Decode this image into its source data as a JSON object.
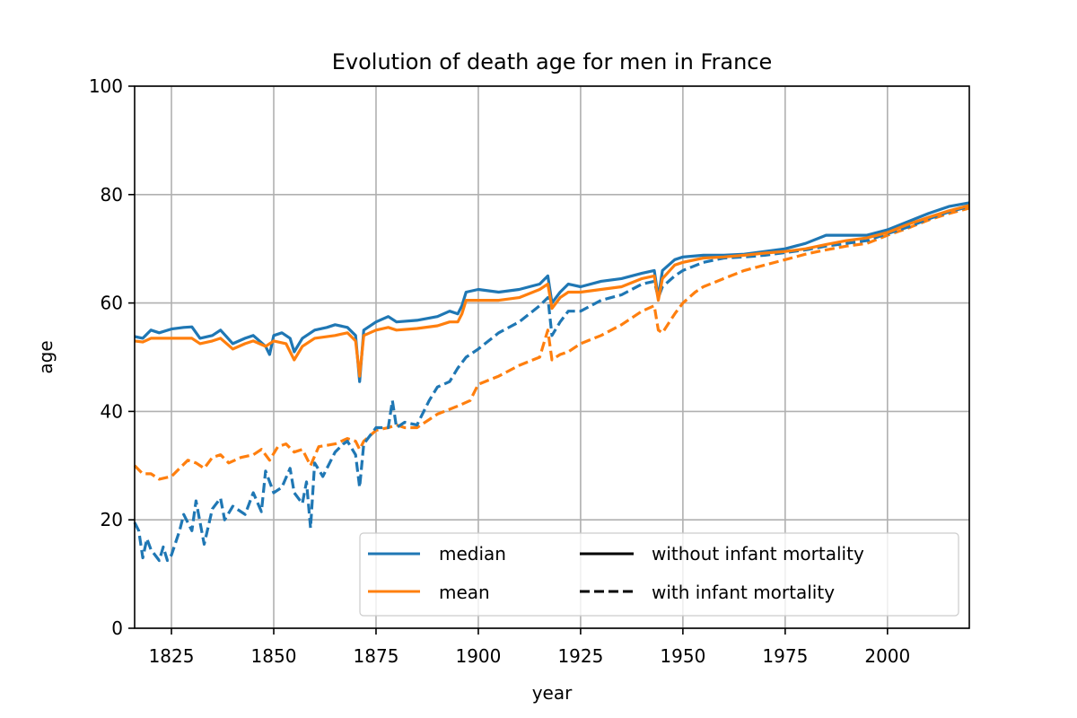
{
  "chart_data": {
    "type": "line",
    "title": "Evolution of death age for men in France",
    "xlabel": "year",
    "ylabel": "age",
    "xlim": [
      1816,
      2020
    ],
    "ylim": [
      0,
      100
    ],
    "xticks": [
      1825,
      1850,
      1875,
      1900,
      1925,
      1950,
      1975,
      2000
    ],
    "yticks": [
      0,
      20,
      40,
      60,
      80,
      100
    ],
    "grid": true,
    "legend_position": "lower-right",
    "legend": {
      "color_entries": [
        {
          "label": "median",
          "color": "#1f77b4"
        },
        {
          "label": "mean",
          "color": "#ff7f0e"
        }
      ],
      "style_entries": [
        {
          "label": "without infant mortality",
          "dash": "solid"
        },
        {
          "label": "with infant mortality",
          "dash": "dashed"
        }
      ]
    },
    "series": [
      {
        "name": "median",
        "variant": "without infant mortality",
        "color": "#1f77b4",
        "dash": "solid",
        "points": [
          [
            1816,
            53.8
          ],
          [
            1818,
            53.5
          ],
          [
            1820,
            55.0
          ],
          [
            1822,
            54.5
          ],
          [
            1825,
            55.2
          ],
          [
            1828,
            55.5
          ],
          [
            1830,
            55.6
          ],
          [
            1832,
            53.5
          ],
          [
            1835,
            54.0
          ],
          [
            1837,
            55.0
          ],
          [
            1840,
            52.5
          ],
          [
            1843,
            53.5
          ],
          [
            1845,
            54.0
          ],
          [
            1848,
            52.0
          ],
          [
            1849,
            50.5
          ],
          [
            1850,
            54.0
          ],
          [
            1852,
            54.5
          ],
          [
            1854,
            53.5
          ],
          [
            1855,
            51.0
          ],
          [
            1857,
            53.5
          ],
          [
            1860,
            55.0
          ],
          [
            1863,
            55.5
          ],
          [
            1865,
            56.0
          ],
          [
            1868,
            55.5
          ],
          [
            1870,
            54.0
          ],
          [
            1871,
            45.5
          ],
          [
            1872,
            55.0
          ],
          [
            1875,
            56.5
          ],
          [
            1878,
            57.5
          ],
          [
            1880,
            56.5
          ],
          [
            1885,
            56.8
          ],
          [
            1890,
            57.5
          ],
          [
            1893,
            58.5
          ],
          [
            1895,
            58.0
          ],
          [
            1896,
            59.5
          ],
          [
            1897,
            62.0
          ],
          [
            1900,
            62.5
          ],
          [
            1905,
            62.0
          ],
          [
            1910,
            62.5
          ],
          [
            1915,
            63.5
          ],
          [
            1917,
            65.0
          ],
          [
            1918,
            60.0
          ],
          [
            1920,
            62.0
          ],
          [
            1922,
            63.5
          ],
          [
            1925,
            63.0
          ],
          [
            1930,
            64.0
          ],
          [
            1935,
            64.5
          ],
          [
            1940,
            65.5
          ],
          [
            1943,
            66.0
          ],
          [
            1944,
            61.0
          ],
          [
            1945,
            66.0
          ],
          [
            1948,
            68.0
          ],
          [
            1950,
            68.5
          ],
          [
            1955,
            68.8
          ],
          [
            1960,
            68.8
          ],
          [
            1965,
            69.0
          ],
          [
            1970,
            69.5
          ],
          [
            1975,
            70.0
          ],
          [
            1980,
            71.0
          ],
          [
            1985,
            72.5
          ],
          [
            1990,
            72.5
          ],
          [
            1995,
            72.5
          ],
          [
            2000,
            73.5
          ],
          [
            2005,
            75.0
          ],
          [
            2010,
            76.5
          ],
          [
            2015,
            77.8
          ],
          [
            2020,
            78.5
          ]
        ]
      },
      {
        "name": "mean",
        "variant": "without infant mortality",
        "color": "#ff7f0e",
        "dash": "solid",
        "points": [
          [
            1816,
            53.0
          ],
          [
            1818,
            52.8
          ],
          [
            1820,
            53.5
          ],
          [
            1825,
            53.5
          ],
          [
            1830,
            53.5
          ],
          [
            1832,
            52.5
          ],
          [
            1835,
            53.0
          ],
          [
            1837,
            53.5
          ],
          [
            1840,
            51.5
          ],
          [
            1843,
            52.5
          ],
          [
            1845,
            53.0
          ],
          [
            1848,
            52.0
          ],
          [
            1850,
            53.0
          ],
          [
            1853,
            52.5
          ],
          [
            1855,
            49.5
          ],
          [
            1857,
            52.0
          ],
          [
            1860,
            53.5
          ],
          [
            1865,
            54.0
          ],
          [
            1868,
            54.5
          ],
          [
            1870,
            53.0
          ],
          [
            1871,
            46.5
          ],
          [
            1872,
            54.0
          ],
          [
            1875,
            55.0
          ],
          [
            1878,
            55.5
          ],
          [
            1880,
            55.0
          ],
          [
            1885,
            55.3
          ],
          [
            1890,
            55.8
          ],
          [
            1893,
            56.5
          ],
          [
            1895,
            56.5
          ],
          [
            1896,
            58.0
          ],
          [
            1897,
            60.5
          ],
          [
            1900,
            60.5
          ],
          [
            1905,
            60.5
          ],
          [
            1910,
            61.0
          ],
          [
            1915,
            62.5
          ],
          [
            1917,
            63.5
          ],
          [
            1918,
            59.0
          ],
          [
            1920,
            61.0
          ],
          [
            1922,
            62.0
          ],
          [
            1925,
            62.0
          ],
          [
            1930,
            62.5
          ],
          [
            1935,
            63.0
          ],
          [
            1940,
            64.5
          ],
          [
            1943,
            65.0
          ],
          [
            1944,
            60.5
          ],
          [
            1945,
            64.5
          ],
          [
            1948,
            67.0
          ],
          [
            1950,
            67.5
          ],
          [
            1955,
            68.3
          ],
          [
            1960,
            68.5
          ],
          [
            1965,
            68.8
          ],
          [
            1970,
            69.2
          ],
          [
            1975,
            69.5
          ],
          [
            1980,
            70.0
          ],
          [
            1985,
            70.8
          ],
          [
            1990,
            71.5
          ],
          [
            1995,
            72.0
          ],
          [
            2000,
            73.0
          ],
          [
            2005,
            74.5
          ],
          [
            2010,
            75.8
          ],
          [
            2015,
            77.0
          ],
          [
            2020,
            78.0
          ]
        ]
      },
      {
        "name": "median",
        "variant": "with infant mortality",
        "color": "#1f77b4",
        "dash": "dashed",
        "points": [
          [
            1816,
            19.5
          ],
          [
            1817,
            18.0
          ],
          [
            1818,
            13.0
          ],
          [
            1819,
            16.5
          ],
          [
            1820,
            14.5
          ],
          [
            1822,
            12.5
          ],
          [
            1823,
            15.0
          ],
          [
            1824,
            12.5
          ],
          [
            1825,
            13.5
          ],
          [
            1827,
            18.0
          ],
          [
            1828,
            21.0
          ],
          [
            1830,
            18.0
          ],
          [
            1831,
            23.5
          ],
          [
            1833,
            15.5
          ],
          [
            1835,
            22.0
          ],
          [
            1837,
            24.0
          ],
          [
            1838,
            20.0
          ],
          [
            1840,
            22.5
          ],
          [
            1843,
            21.0
          ],
          [
            1845,
            25.0
          ],
          [
            1847,
            21.5
          ],
          [
            1848,
            29.0
          ],
          [
            1850,
            25.0
          ],
          [
            1852,
            26.0
          ],
          [
            1854,
            29.5
          ],
          [
            1855,
            25.0
          ],
          [
            1857,
            23.0
          ],
          [
            1858,
            27.0
          ],
          [
            1859,
            18.5
          ],
          [
            1860,
            30.5
          ],
          [
            1862,
            28.0
          ],
          [
            1865,
            32.5
          ],
          [
            1867,
            34.0
          ],
          [
            1868,
            34.5
          ],
          [
            1870,
            32.0
          ],
          [
            1871,
            26.0
          ],
          [
            1872,
            34.0
          ],
          [
            1875,
            37.0
          ],
          [
            1878,
            37.0
          ],
          [
            1879,
            42.0
          ],
          [
            1880,
            37.0
          ],
          [
            1882,
            38.0
          ],
          [
            1885,
            37.5
          ],
          [
            1888,
            42.0
          ],
          [
            1890,
            44.5
          ],
          [
            1893,
            45.5
          ],
          [
            1895,
            48.0
          ],
          [
            1897,
            50.0
          ],
          [
            1900,
            51.5
          ],
          [
            1905,
            54.5
          ],
          [
            1910,
            56.5
          ],
          [
            1915,
            59.5
          ],
          [
            1917,
            61.0
          ],
          [
            1918,
            54.0
          ],
          [
            1920,
            56.5
          ],
          [
            1922,
            58.5
          ],
          [
            1925,
            58.5
          ],
          [
            1930,
            60.5
          ],
          [
            1935,
            61.5
          ],
          [
            1940,
            63.5
          ],
          [
            1943,
            64.0
          ],
          [
            1944,
            61.0
          ],
          [
            1945,
            63.0
          ],
          [
            1948,
            65.0
          ],
          [
            1950,
            66.0
          ],
          [
            1955,
            67.5
          ],
          [
            1960,
            68.3
          ],
          [
            1965,
            68.5
          ],
          [
            1970,
            68.8
          ],
          [
            1975,
            69.3
          ],
          [
            1980,
            69.8
          ],
          [
            1985,
            70.5
          ],
          [
            1990,
            71.0
          ],
          [
            1995,
            71.5
          ],
          [
            2000,
            72.8
          ],
          [
            2005,
            74.0
          ],
          [
            2010,
            75.5
          ],
          [
            2015,
            76.8
          ],
          [
            2020,
            77.8
          ]
        ]
      },
      {
        "name": "mean",
        "variant": "with infant mortality",
        "color": "#ff7f0e",
        "dash": "dashed",
        "points": [
          [
            1816,
            30.0
          ],
          [
            1818,
            28.5
          ],
          [
            1820,
            28.5
          ],
          [
            1822,
            27.5
          ],
          [
            1825,
            28.0
          ],
          [
            1827,
            29.5
          ],
          [
            1829,
            31.0
          ],
          [
            1831,
            30.5
          ],
          [
            1833,
            29.5
          ],
          [
            1835,
            31.5
          ],
          [
            1837,
            32.0
          ],
          [
            1839,
            30.5
          ],
          [
            1842,
            31.5
          ],
          [
            1845,
            32.0
          ],
          [
            1847,
            33.0
          ],
          [
            1849,
            31.0
          ],
          [
            1851,
            33.5
          ],
          [
            1853,
            34.0
          ],
          [
            1855,
            32.5
          ],
          [
            1857,
            33.0
          ],
          [
            1859,
            30.0
          ],
          [
            1861,
            33.5
          ],
          [
            1865,
            34.0
          ],
          [
            1868,
            35.0
          ],
          [
            1870,
            34.5
          ],
          [
            1871,
            33.0
          ],
          [
            1872,
            34.5
          ],
          [
            1875,
            36.5
          ],
          [
            1878,
            37.0
          ],
          [
            1880,
            37.5
          ],
          [
            1882,
            37.0
          ],
          [
            1885,
            37.0
          ],
          [
            1888,
            38.5
          ],
          [
            1890,
            39.5
          ],
          [
            1895,
            41.0
          ],
          [
            1898,
            42.0
          ],
          [
            1900,
            45.0
          ],
          [
            1905,
            46.5
          ],
          [
            1910,
            48.5
          ],
          [
            1915,
            50.0
          ],
          [
            1917,
            55.0
          ],
          [
            1918,
            49.5
          ],
          [
            1920,
            50.5
          ],
          [
            1922,
            51.0
          ],
          [
            1925,
            52.5
          ],
          [
            1930,
            54.0
          ],
          [
            1935,
            56.0
          ],
          [
            1940,
            58.5
          ],
          [
            1943,
            59.5
          ],
          [
            1944,
            55.0
          ],
          [
            1945,
            54.5
          ],
          [
            1948,
            58.0
          ],
          [
            1950,
            60.0
          ],
          [
            1953,
            62.0
          ],
          [
            1955,
            63.0
          ],
          [
            1960,
            64.5
          ],
          [
            1965,
            66.0
          ],
          [
            1970,
            67.0
          ],
          [
            1975,
            68.0
          ],
          [
            1980,
            69.0
          ],
          [
            1985,
            69.8
          ],
          [
            1990,
            70.5
          ],
          [
            1995,
            71.0
          ],
          [
            2000,
            72.5
          ],
          [
            2005,
            73.8
          ],
          [
            2010,
            75.3
          ],
          [
            2015,
            76.5
          ],
          [
            2020,
            77.5
          ]
        ]
      }
    ]
  }
}
